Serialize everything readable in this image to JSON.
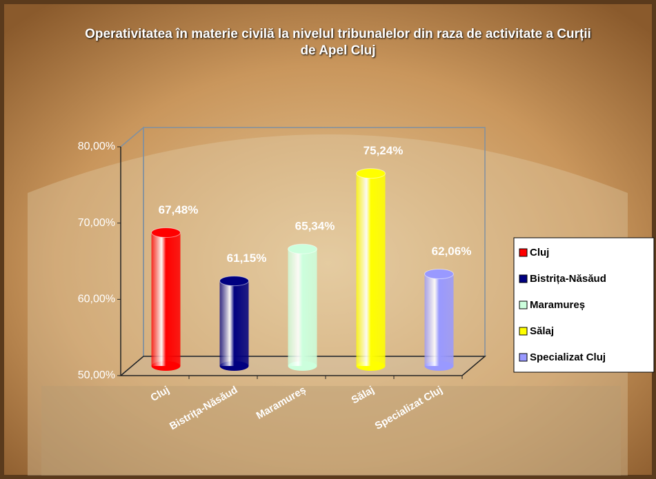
{
  "chart_data": {
    "type": "bar",
    "title": "Operativitatea în materie civilă la nivelul tribunalelor din raza de activitate a Curții de Apel Cluj",
    "categories": [
      "Cluj",
      "Bistrița-Năsăud",
      "Maramureș",
      "Sălaj",
      "Specializat Cluj"
    ],
    "values": [
      67.48,
      61.15,
      65.34,
      75.24,
      62.06
    ],
    "value_labels": [
      "67,48%",
      "61,15%",
      "65,34%",
      "75,24%",
      "62,06%"
    ],
    "colors": [
      "#ff0000",
      "#000080",
      "#ccffdd",
      "#ffff00",
      "#9999ff"
    ],
    "ylim": [
      50,
      80
    ],
    "yticks": [
      {
        "value": 50,
        "label": "50,00%"
      },
      {
        "value": 60,
        "label": "60,00%"
      },
      {
        "value": 70,
        "label": "70,00%"
      },
      {
        "value": 80,
        "label": "80,00%"
      }
    ],
    "legend": "right"
  }
}
